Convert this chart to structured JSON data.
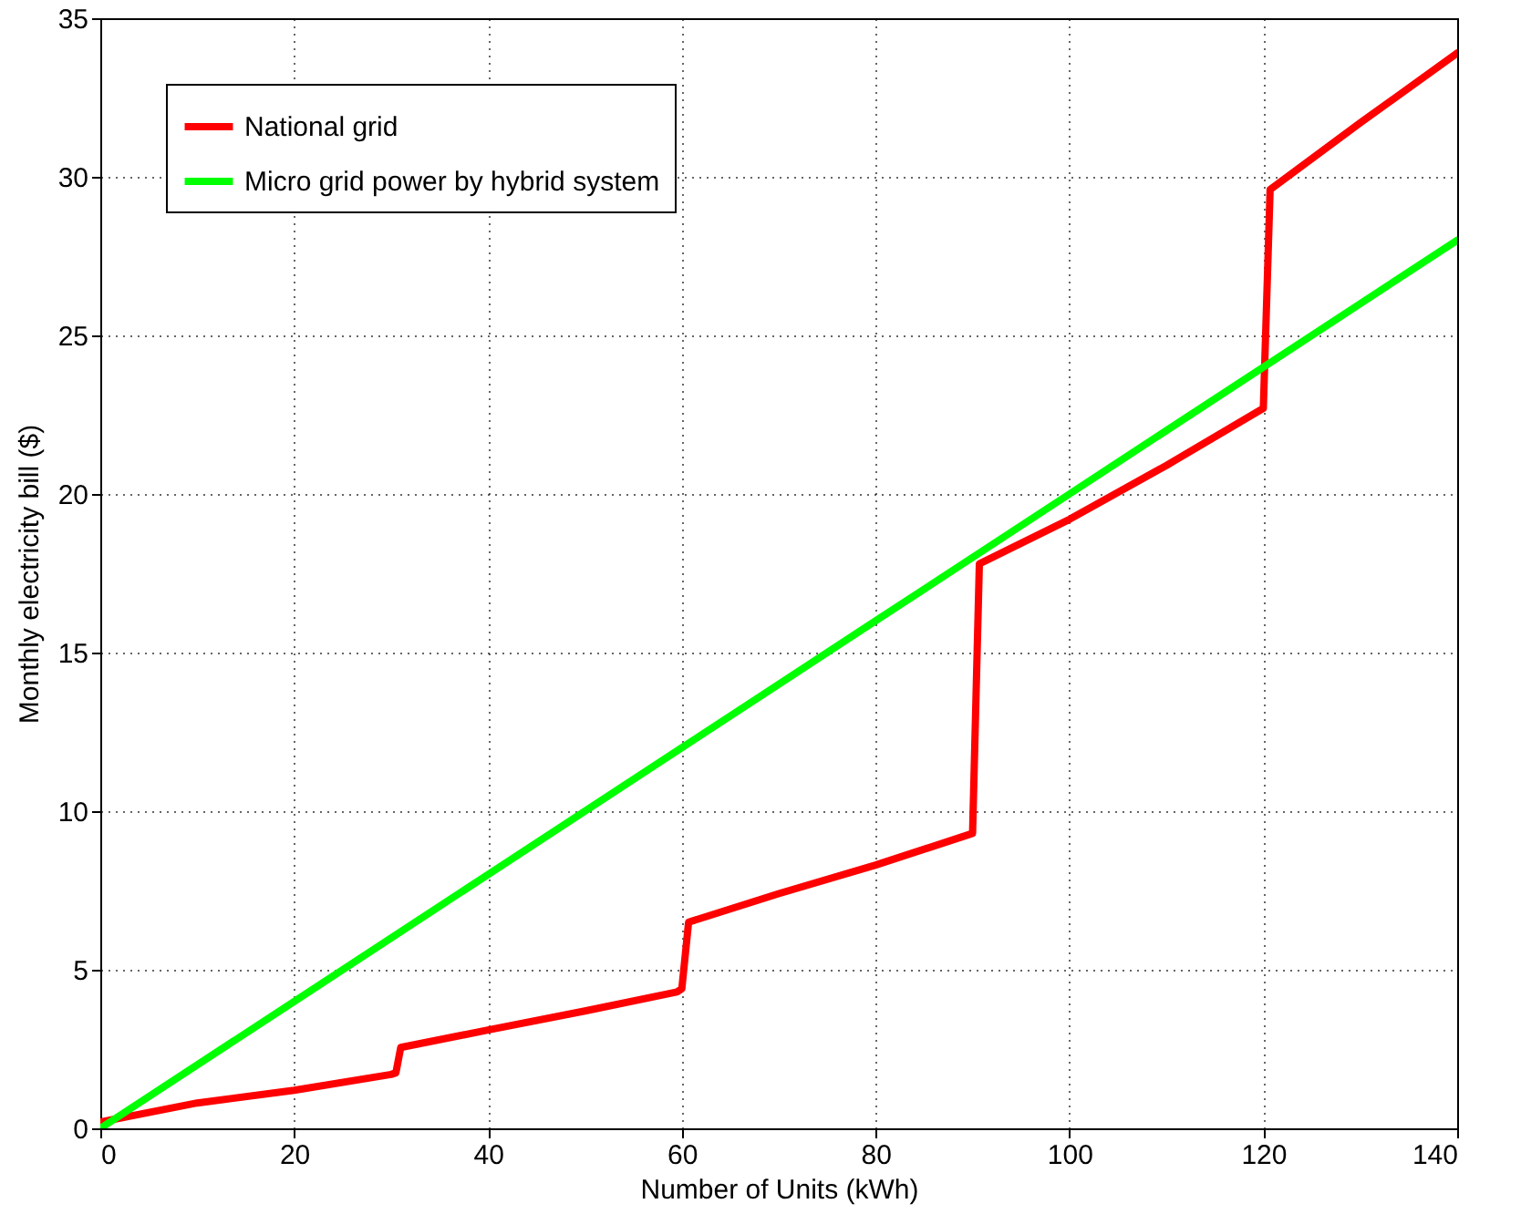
{
  "chart_data": {
    "type": "line",
    "xlabel": "Number of Units (kWh)",
    "ylabel": "Monthly electricity bill ($)",
    "xlim": [
      0,
      140
    ],
    "ylim": [
      0,
      35
    ],
    "xticks": [
      0,
      20,
      40,
      60,
      80,
      100,
      120,
      140
    ],
    "yticks": [
      0,
      5,
      10,
      15,
      20,
      25,
      30,
      35
    ],
    "grid": true,
    "legend": "top left",
    "line_style": "solid",
    "marker": "none",
    "series": [
      {
        "name": "National grid",
        "color": "#ff0000",
        "x": [
          0,
          10,
          20,
          30,
          30.5,
          31,
          40,
          50,
          59.5,
          60,
          60.7,
          70,
          80,
          90,
          90.7,
          100,
          110,
          120,
          120.7,
          130,
          140
        ],
        "values": [
          0.2,
          0.8,
          1.2,
          1.7,
          1.75,
          2.55,
          3.1,
          3.7,
          4.3,
          4.4,
          6.5,
          7.4,
          8.3,
          9.3,
          17.8,
          19.2,
          20.9,
          22.7,
          29.6,
          31.7,
          33.9
        ]
      },
      {
        "name": "Micro grid power by hybrid system",
        "color": "#00ff00",
        "x": [
          0,
          20,
          40,
          60,
          80,
          100,
          120,
          140
        ],
        "values": [
          0,
          4,
          8,
          12,
          16,
          20,
          24,
          28
        ]
      }
    ]
  }
}
